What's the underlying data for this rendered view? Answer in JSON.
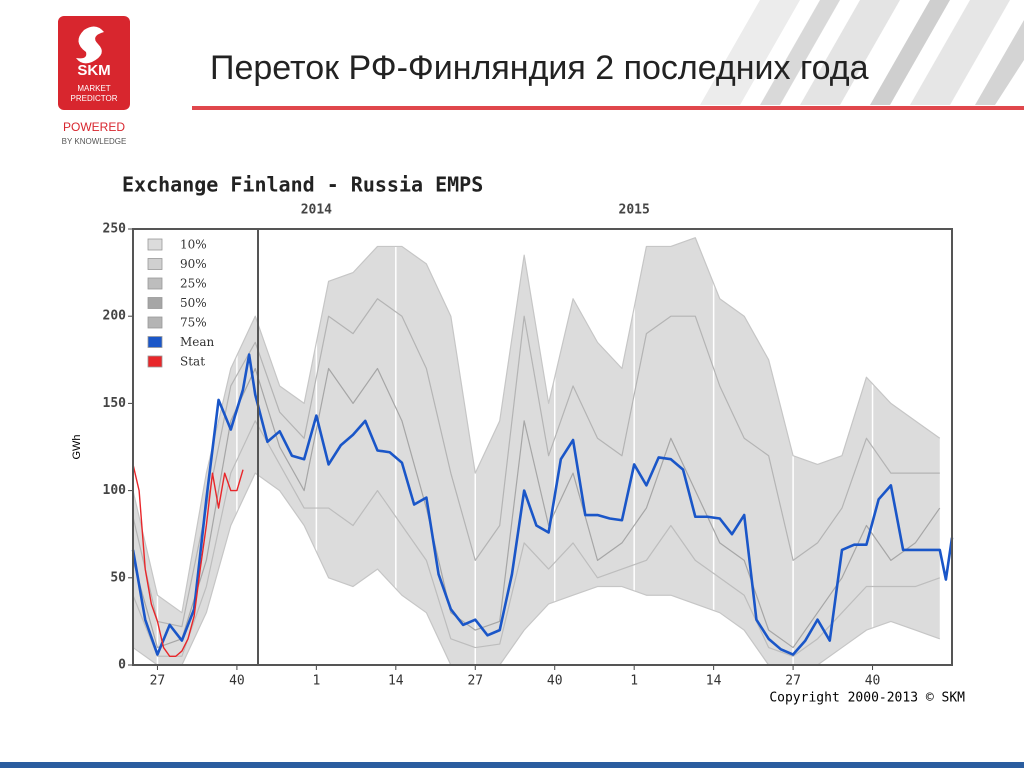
{
  "header": {
    "title": "Переток РФ-Финляндия 2 последних года",
    "logo": {
      "brand": "SKM",
      "line1": "MARKET",
      "line2": "PREDICTOR",
      "slogan1": "POWERED",
      "slogan2": "BY KNOWLEDGE"
    }
  },
  "chart_data": {
    "type": "line",
    "title": "Exchange Finland - Russia EMPS",
    "y_label": "GWh",
    "copyright": "Copyright 2000-2013 © SKM",
    "xlim": [
      0,
      134
    ],
    "ylim": [
      0,
      250
    ],
    "yticks": [
      0,
      50,
      100,
      150,
      200,
      250
    ],
    "xticks": [
      {
        "value": 4,
        "label": "27"
      },
      {
        "value": 17,
        "label": "40"
      },
      {
        "value": 30,
        "label": "1"
      },
      {
        "value": 43,
        "label": "14"
      },
      {
        "value": 56,
        "label": "27"
      },
      {
        "value": 69,
        "label": "40"
      },
      {
        "value": 82,
        "label": "1"
      },
      {
        "value": 95,
        "label": "14"
      },
      {
        "value": 108,
        "label": "27"
      },
      {
        "value": 121,
        "label": "40"
      }
    ],
    "year_labels": [
      {
        "value": 30,
        "label": "2014"
      },
      {
        "value": 82,
        "label": "2015"
      }
    ],
    "grid": true,
    "legend": "upper left",
    "series": [
      {
        "name": "10%",
        "color": "#dcdcdc",
        "x": [
          0,
          4,
          8,
          12,
          16,
          20,
          24,
          28,
          32,
          36,
          40,
          44,
          48,
          52,
          56,
          60,
          64,
          68,
          72,
          76,
          80,
          84,
          88,
          92,
          96,
          100,
          104,
          108,
          112,
          116,
          120,
          124,
          128,
          132
        ],
        "values": [
          10,
          0,
          0,
          30,
          80,
          110,
          100,
          80,
          50,
          45,
          55,
          40,
          30,
          0,
          0,
          0,
          20,
          35,
          40,
          45,
          45,
          40,
          40,
          35,
          30,
          20,
          0,
          0,
          0,
          10,
          20,
          25,
          20,
          15
        ]
      },
      {
        "name": "90%",
        "color": "#d0d0d0",
        "x": [
          0,
          4,
          8,
          12,
          16,
          20,
          24,
          28,
          32,
          36,
          40,
          44,
          48,
          52,
          56,
          60,
          64,
          68,
          72,
          76,
          80,
          84,
          88,
          92,
          96,
          100,
          104,
          108,
          112,
          116,
          120,
          124,
          128,
          132
        ],
        "values": [
          100,
          40,
          30,
          110,
          170,
          200,
          160,
          150,
          220,
          225,
          240,
          240,
          230,
          200,
          110,
          140,
          235,
          150,
          210,
          185,
          170,
          240,
          240,
          245,
          210,
          200,
          175,
          120,
          115,
          120,
          165,
          150,
          140,
          130
        ]
      },
      {
        "name": "25%",
        "color": "#bdbdbd",
        "x": [
          0,
          4,
          8,
          12,
          16,
          20,
          24,
          28,
          32,
          36,
          40,
          44,
          48,
          52,
          56,
          60,
          64,
          68,
          72,
          76,
          80,
          84,
          88,
          92,
          96,
          100,
          104,
          108,
          112,
          116,
          120,
          124,
          128,
          132
        ],
        "values": [
          40,
          5,
          5,
          45,
          110,
          140,
          115,
          90,
          90,
          80,
          100,
          80,
          60,
          15,
          10,
          12,
          70,
          55,
          70,
          50,
          55,
          60,
          80,
          60,
          50,
          40,
          10,
          5,
          15,
          30,
          45,
          45,
          45,
          50
        ]
      },
      {
        "name": "50%",
        "color": "#a6a6a6",
        "x": [
          0,
          4,
          8,
          12,
          16,
          20,
          24,
          28,
          32,
          36,
          40,
          44,
          48,
          52,
          56,
          60,
          64,
          68,
          72,
          76,
          80,
          84,
          88,
          92,
          96,
          100,
          104,
          108,
          112,
          116,
          120,
          124,
          128,
          132
        ],
        "values": [
          60,
          10,
          15,
          60,
          140,
          170,
          125,
          100,
          170,
          150,
          170,
          140,
          90,
          30,
          20,
          25,
          140,
          80,
          110,
          60,
          70,
          90,
          130,
          100,
          70,
          60,
          20,
          10,
          30,
          50,
          80,
          60,
          70,
          90
        ]
      },
      {
        "name": "75%",
        "color": "#b4b4b4",
        "x": [
          0,
          4,
          8,
          12,
          16,
          20,
          24,
          28,
          32,
          36,
          40,
          44,
          48,
          52,
          56,
          60,
          64,
          68,
          72,
          76,
          80,
          84,
          88,
          92,
          96,
          100,
          104,
          108,
          112,
          116,
          120,
          124,
          128,
          132
        ],
        "values": [
          85,
          25,
          22,
          90,
          160,
          185,
          145,
          130,
          200,
          190,
          210,
          200,
          170,
          110,
          60,
          80,
          200,
          120,
          160,
          130,
          120,
          190,
          200,
          200,
          160,
          130,
          120,
          60,
          70,
          90,
          130,
          110,
          110,
          110
        ]
      },
      {
        "name": "Mean",
        "color": "#1a56c8",
        "x": [
          0,
          2,
          4,
          6,
          8,
          10,
          12,
          14,
          16,
          18,
          19,
          20,
          22,
          24,
          26,
          28,
          30,
          32,
          34,
          36,
          38,
          40,
          42,
          44,
          46,
          48,
          50,
          52,
          54,
          56,
          58,
          60,
          62,
          64,
          66,
          68,
          70,
          72,
          74,
          76,
          78,
          80,
          82,
          84,
          86,
          88,
          90,
          92,
          94,
          96,
          98,
          100,
          102,
          104,
          106,
          108,
          110,
          112,
          114,
          116,
          118,
          120,
          122,
          124,
          126,
          128,
          130,
          132,
          133,
          134
        ],
        "values": [
          66,
          26,
          6,
          23,
          14,
          32,
          95,
          152,
          135,
          158,
          178,
          155,
          128,
          134,
          120,
          118,
          143,
          115,
          126,
          132,
          140,
          123,
          122,
          116,
          92,
          96,
          52,
          32,
          23,
          26,
          17,
          20,
          52,
          100,
          80,
          76,
          118,
          129,
          86,
          86,
          84,
          83,
          115,
          103,
          119,
          118,
          112,
          85,
          85,
          84,
          75,
          86,
          26,
          15,
          9,
          6,
          14,
          26,
          14,
          66,
          69,
          69,
          95,
          103,
          66,
          66,
          66,
          66,
          49,
          73
        ]
      },
      {
        "name": "Stat",
        "color": "#e8262a",
        "x": [
          0,
          1,
          2,
          3,
          4,
          5,
          6,
          7,
          8,
          9,
          10,
          11,
          12,
          13,
          14,
          15,
          16,
          17,
          18
        ],
        "values": [
          115,
          100,
          55,
          35,
          25,
          10,
          5,
          5,
          8,
          15,
          28,
          55,
          80,
          110,
          90,
          110,
          100,
          100,
          112
        ]
      }
    ]
  }
}
